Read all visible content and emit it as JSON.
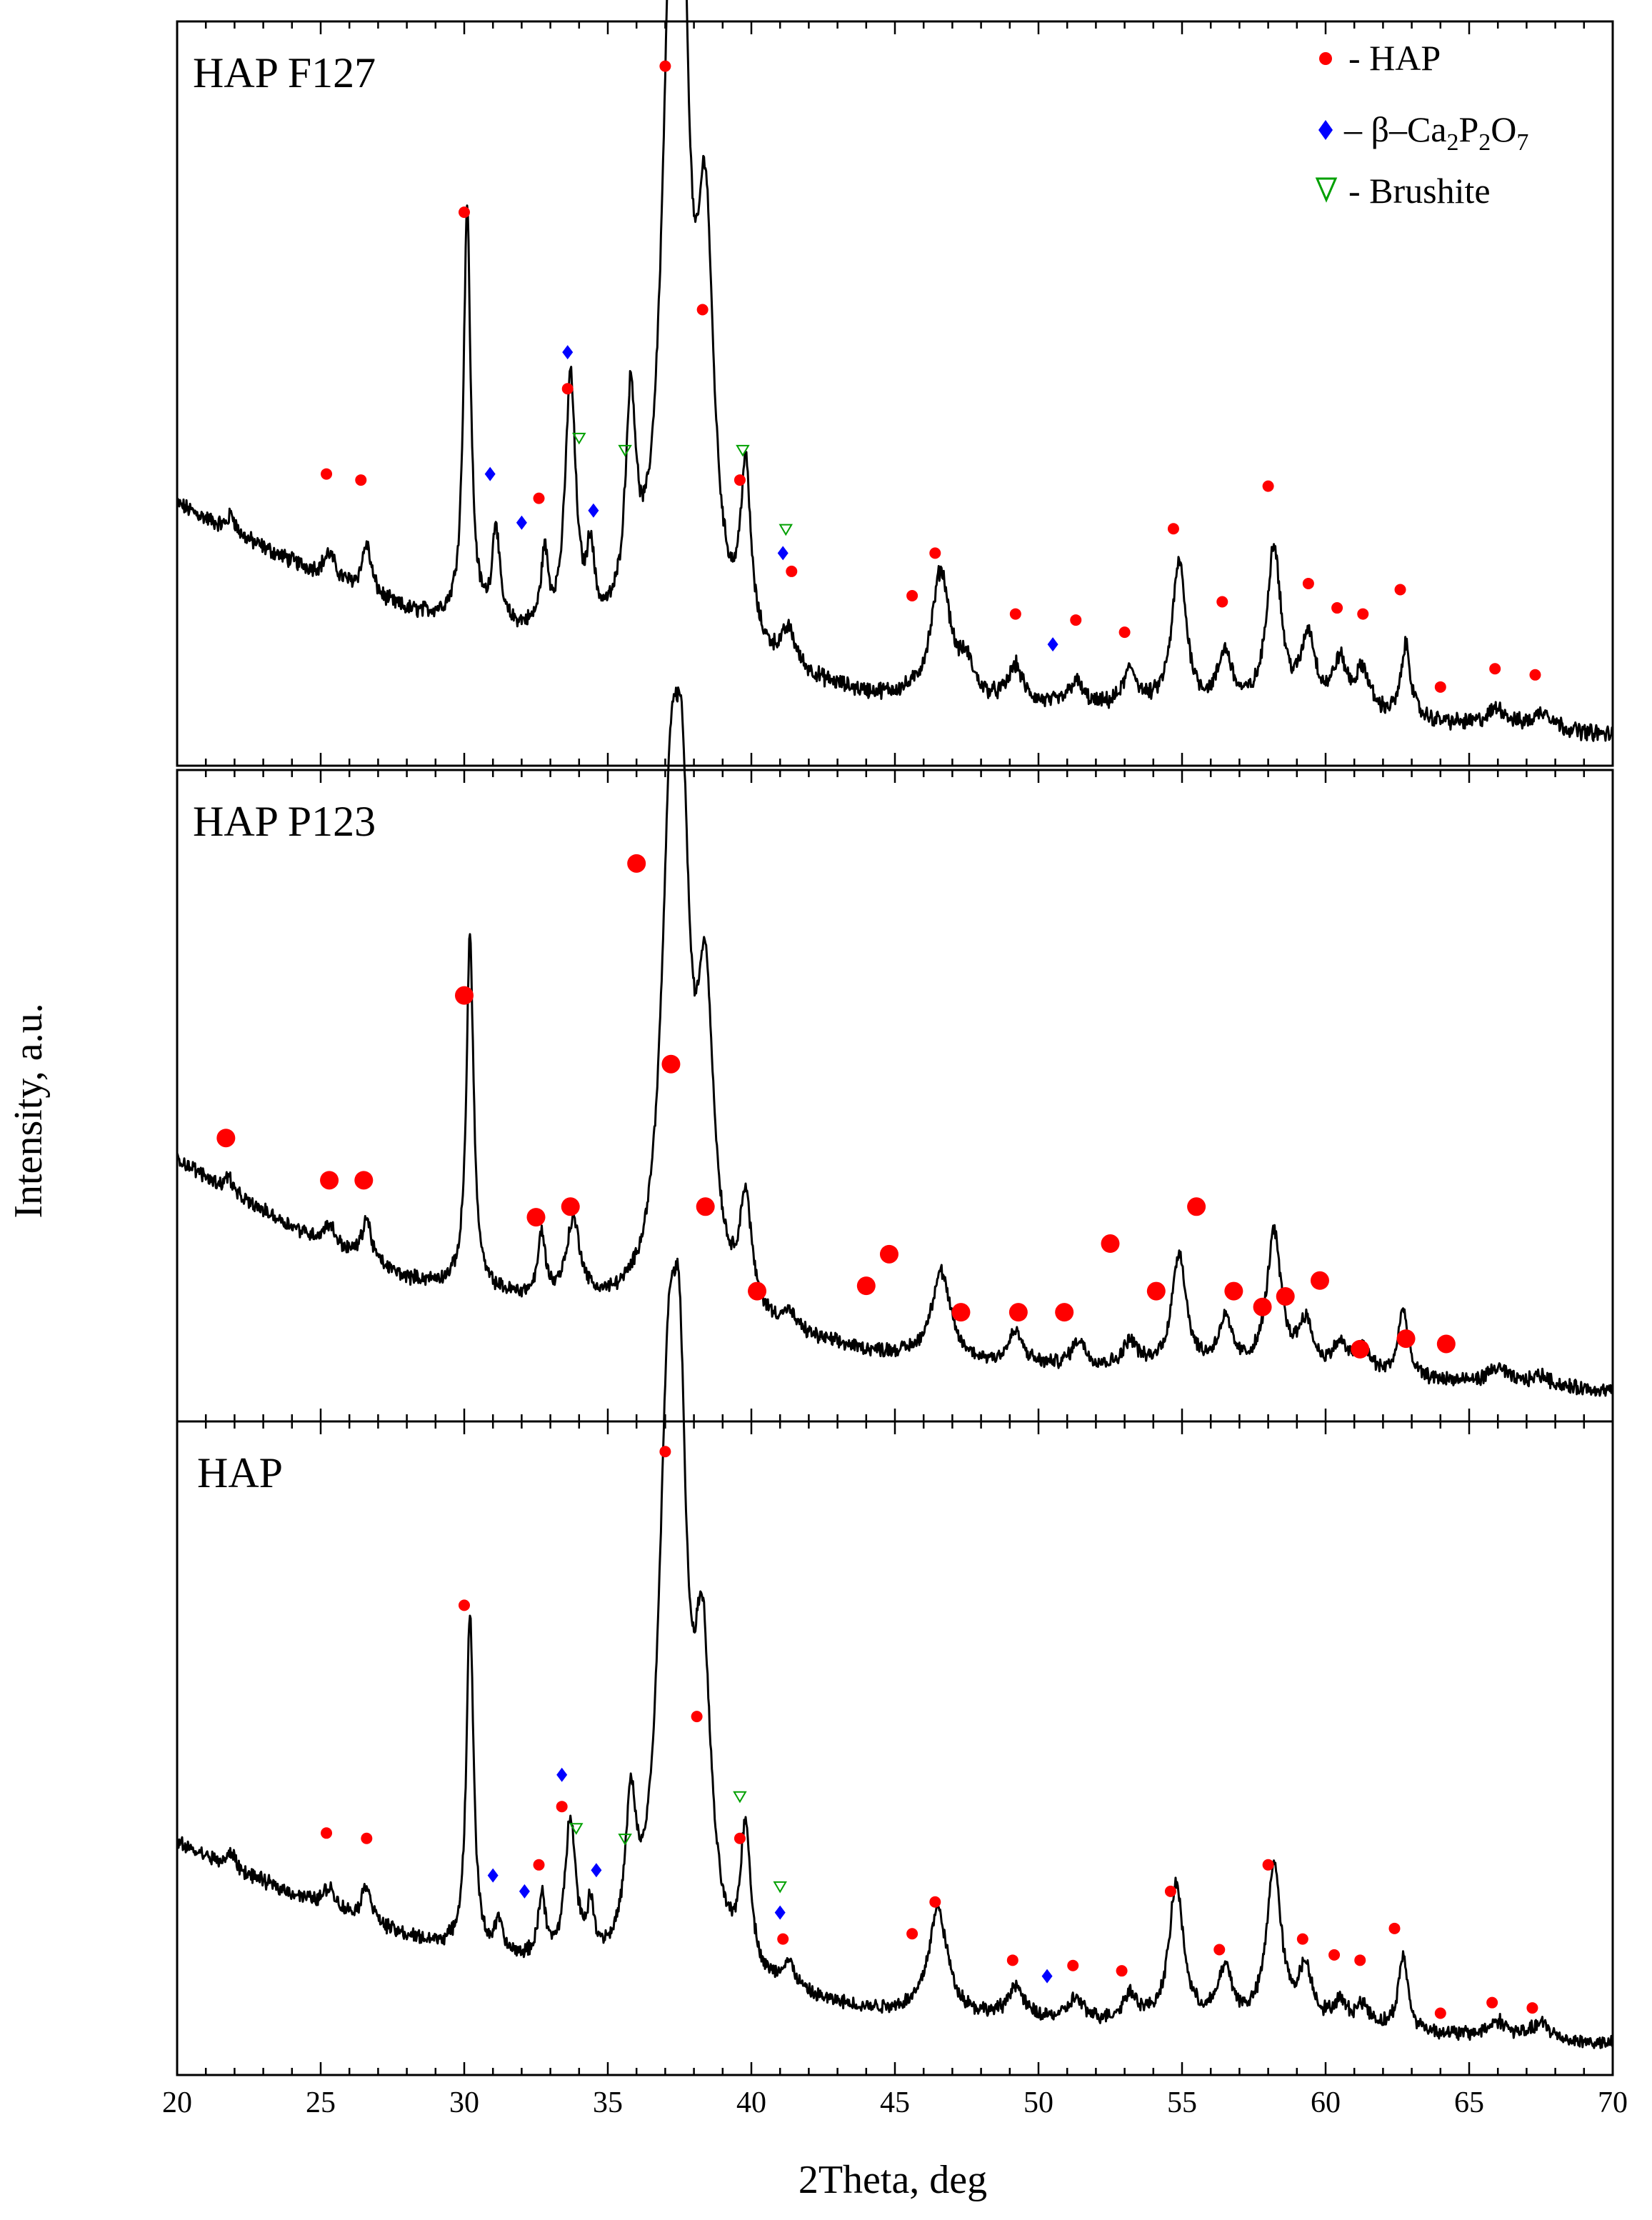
{
  "chart_data": {
    "type": "line",
    "title": "",
    "xlabel": "2Theta, deg",
    "ylabel": "Intensity, a.u.",
    "xlim": [
      20,
      70
    ],
    "x_ticks": [
      20,
      25,
      30,
      35,
      40,
      45,
      50,
      55,
      60,
      65,
      70
    ],
    "grid": false,
    "legend_position": "top-right",
    "legend": [
      {
        "marker": "circle",
        "color": "#ff0000",
        "label": "- HAP"
      },
      {
        "marker": "diamond",
        "color": "#0000ff",
        "label_prefix": "– β–Ca",
        "sub1": "2",
        "mid1": "P",
        "sub2": "2",
        "mid2": "O",
        "sub3": "7"
      },
      {
        "marker": "triangle-down",
        "color": "#00a000",
        "label": "- Brushite"
      }
    ],
    "colors": {
      "line": "#000000",
      "hap": "#ff0000",
      "pyro": "#0000ff",
      "brushite": "#00a000"
    },
    "series": [
      {
        "name": "HAP F127",
        "baseline": [
          [
            20,
            0.38
          ],
          [
            22,
            0.33
          ],
          [
            25,
            0.26
          ],
          [
            28,
            0.2
          ],
          [
            30,
            0.18
          ],
          [
            33,
            0.15
          ],
          [
            36,
            0.13
          ],
          [
            40,
            0.1
          ],
          [
            44,
            0.06
          ],
          [
            47,
            0.05
          ],
          [
            52,
            0.04
          ],
          [
            60,
            0.03
          ],
          [
            70,
            0.0
          ]
        ],
        "peaks": [
          [
            21.9,
            0.03,
            0.15
          ],
          [
            25.3,
            0.04,
            0.25
          ],
          [
            26.6,
            0.08,
            0.2
          ],
          [
            30.1,
            0.68,
            0.15
          ],
          [
            31.1,
            0.16,
            0.15
          ],
          [
            32.8,
            0.12,
            0.15
          ],
          [
            33.7,
            0.42,
            0.22
          ],
          [
            34.4,
            0.12,
            0.15
          ],
          [
            35.8,
            0.35,
            0.22
          ],
          [
            37.2,
            0.95,
            0.4
          ],
          [
            37.6,
            0.75,
            0.3
          ],
          [
            38.4,
            0.63,
            0.35
          ],
          [
            39.8,
            0.28,
            0.22
          ],
          [
            41.3,
            0.06,
            0.3
          ],
          [
            46.6,
            0.21,
            0.4
          ],
          [
            47.5,
            0.05,
            0.3
          ],
          [
            49.2,
            0.06,
            0.3
          ],
          [
            51.3,
            0.04,
            0.3
          ],
          [
            53.2,
            0.06,
            0.3
          ],
          [
            54.9,
            0.24,
            0.3
          ],
          [
            56.5,
            0.09,
            0.3
          ],
          [
            58.2,
            0.27,
            0.3
          ],
          [
            59.4,
            0.12,
            0.3
          ],
          [
            60.5,
            0.08,
            0.3
          ],
          [
            61.3,
            0.07,
            0.3
          ],
          [
            62.8,
            0.12,
            0.2
          ],
          [
            66.0,
            0.03,
            0.4
          ],
          [
            67.6,
            0.03,
            0.4
          ]
        ],
        "hap_markers": [
          [
            25.2,
            0.43
          ],
          [
            26.4,
            0.42
          ],
          [
            30.0,
            0.86
          ],
          [
            33.6,
            0.57
          ],
          [
            32.6,
            0.39
          ],
          [
            37.0,
            1.1
          ],
          [
            38.3,
            0.7
          ],
          [
            39.6,
            0.42
          ],
          [
            41.4,
            0.27
          ],
          [
            45.6,
            0.23
          ],
          [
            46.4,
            0.3
          ],
          [
            49.2,
            0.2
          ],
          [
            51.3,
            0.19
          ],
          [
            53.0,
            0.17
          ],
          [
            54.7,
            0.34
          ],
          [
            56.4,
            0.22
          ],
          [
            58.0,
            0.41
          ],
          [
            59.4,
            0.25
          ],
          [
            60.4,
            0.21
          ],
          [
            61.3,
            0.2
          ],
          [
            62.6,
            0.24
          ],
          [
            64.0,
            0.08
          ],
          [
            65.9,
            0.11
          ],
          [
            67.3,
            0.1
          ]
        ],
        "pyro_markers": [
          [
            30.9,
            0.43
          ],
          [
            32.0,
            0.35
          ],
          [
            33.6,
            0.63
          ],
          [
            34.5,
            0.37
          ],
          [
            41.1,
            0.3
          ],
          [
            50.5,
            0.15
          ]
        ],
        "brushite_markers": [
          [
            34.0,
            0.49
          ],
          [
            35.6,
            0.47
          ],
          [
            39.7,
            0.47
          ],
          [
            41.2,
            0.34
          ]
        ]
      },
      {
        "name": "HAP P123",
        "baseline": [
          [
            20,
            0.44
          ],
          [
            22,
            0.37
          ],
          [
            25,
            0.28
          ],
          [
            28,
            0.21
          ],
          [
            30,
            0.19
          ],
          [
            33,
            0.16
          ],
          [
            36,
            0.14
          ],
          [
            40,
            0.11
          ],
          [
            44,
            0.07
          ],
          [
            47,
            0.05
          ],
          [
            52,
            0.04
          ],
          [
            60,
            0.03
          ],
          [
            70,
            0.0
          ]
        ],
        "peaks": [
          [
            21.8,
            0.03,
            0.15
          ],
          [
            25.3,
            0.04,
            0.25
          ],
          [
            26.6,
            0.08,
            0.2
          ],
          [
            30.2,
            0.67,
            0.15
          ],
          [
            32.7,
            0.12,
            0.15
          ],
          [
            33.8,
            0.15,
            0.3
          ],
          [
            37.2,
            0.87,
            0.4
          ],
          [
            37.6,
            0.62,
            0.3
          ],
          [
            38.4,
            0.56,
            0.35
          ],
          [
            39.8,
            0.21,
            0.25
          ],
          [
            41.3,
            0.03,
            0.3
          ],
          [
            46.6,
            0.17,
            0.4
          ],
          [
            49.2,
            0.06,
            0.3
          ],
          [
            51.4,
            0.05,
            0.3
          ],
          [
            53.2,
            0.05,
            0.3
          ],
          [
            54.9,
            0.22,
            0.3
          ],
          [
            56.5,
            0.09,
            0.3
          ],
          [
            58.2,
            0.26,
            0.3
          ],
          [
            59.3,
            0.09,
            0.3
          ],
          [
            60.5,
            0.05,
            0.3
          ],
          [
            61.3,
            0.05,
            0.3
          ],
          [
            62.7,
            0.13,
            0.2
          ],
          [
            66.0,
            0.03,
            0.4
          ],
          [
            67.5,
            0.02,
            0.4
          ]
        ],
        "hap_markers": [
          [
            21.7,
            0.48
          ],
          [
            25.3,
            0.4
          ],
          [
            26.5,
            0.4
          ],
          [
            30.0,
            0.75
          ],
          [
            32.5,
            0.33
          ],
          [
            33.7,
            0.35
          ],
          [
            36.0,
            1.0
          ],
          [
            37.2,
            0.62
          ],
          [
            38.4,
            0.35
          ],
          [
            40.2,
            0.19
          ],
          [
            44.0,
            0.2
          ],
          [
            44.8,
            0.26
          ],
          [
            47.3,
            0.15
          ],
          [
            49.3,
            0.15
          ],
          [
            50.9,
            0.15
          ],
          [
            52.5,
            0.28
          ],
          [
            54.1,
            0.19
          ],
          [
            55.5,
            0.35
          ],
          [
            56.8,
            0.19
          ],
          [
            57.8,
            0.16
          ],
          [
            58.6,
            0.18
          ],
          [
            59.8,
            0.21
          ],
          [
            61.2,
            0.08
          ],
          [
            62.8,
            0.1
          ],
          [
            64.2,
            0.09
          ]
        ],
        "pyro_markers": [],
        "brushite_markers": []
      },
      {
        "name": "HAP",
        "baseline": [
          [
            20,
            0.38
          ],
          [
            22,
            0.33
          ],
          [
            25,
            0.26
          ],
          [
            28,
            0.2
          ],
          [
            30,
            0.17
          ],
          [
            33,
            0.14
          ],
          [
            36,
            0.12
          ],
          [
            40,
            0.09
          ],
          [
            44,
            0.06
          ],
          [
            47,
            0.05
          ],
          [
            52,
            0.04
          ],
          [
            60,
            0.03
          ],
          [
            70,
            0.0
          ]
        ],
        "peaks": [
          [
            21.9,
            0.03,
            0.15
          ],
          [
            25.3,
            0.04,
            0.25
          ],
          [
            26.6,
            0.07,
            0.2
          ],
          [
            30.2,
            0.64,
            0.15
          ],
          [
            31.2,
            0.06,
            0.15
          ],
          [
            32.7,
            0.12,
            0.15
          ],
          [
            33.7,
            0.27,
            0.22
          ],
          [
            34.4,
            0.09,
            0.15
          ],
          [
            35.8,
            0.26,
            0.22
          ],
          [
            37.1,
            0.95,
            0.4
          ],
          [
            37.5,
            0.75,
            0.3
          ],
          [
            38.3,
            0.55,
            0.35
          ],
          [
            39.8,
            0.27,
            0.22
          ],
          [
            41.3,
            0.05,
            0.3
          ],
          [
            46.5,
            0.2,
            0.4
          ],
          [
            49.2,
            0.06,
            0.3
          ],
          [
            51.3,
            0.04,
            0.3
          ],
          [
            53.2,
            0.05,
            0.3
          ],
          [
            54.8,
            0.26,
            0.3
          ],
          [
            56.5,
            0.1,
            0.3
          ],
          [
            58.2,
            0.3,
            0.3
          ],
          [
            59.3,
            0.1,
            0.3
          ],
          [
            60.5,
            0.04,
            0.3
          ],
          [
            61.3,
            0.04,
            0.3
          ],
          [
            62.7,
            0.14,
            0.2
          ],
          [
            66.0,
            0.03,
            0.4
          ],
          [
            67.5,
            0.03,
            0.4
          ]
        ],
        "hap_markers": [
          [
            25.2,
            0.4
          ],
          [
            26.6,
            0.39
          ],
          [
            30.0,
            0.83
          ],
          [
            33.4,
            0.45
          ],
          [
            32.6,
            0.34
          ],
          [
            37.0,
            1.12
          ],
          [
            38.1,
            0.62
          ],
          [
            39.6,
            0.39
          ],
          [
            41.1,
            0.2
          ],
          [
            45.6,
            0.21
          ],
          [
            46.4,
            0.27
          ],
          [
            49.1,
            0.16
          ],
          [
            51.2,
            0.15
          ],
          [
            52.9,
            0.14
          ],
          [
            54.6,
            0.29
          ],
          [
            56.3,
            0.18
          ],
          [
            58.0,
            0.34
          ],
          [
            59.2,
            0.2
          ],
          [
            60.3,
            0.17
          ],
          [
            61.2,
            0.16
          ],
          [
            62.4,
            0.22
          ],
          [
            64.0,
            0.06
          ],
          [
            65.8,
            0.08
          ],
          [
            67.2,
            0.07
          ]
        ],
        "pyro_markers": [
          [
            31.0,
            0.32
          ],
          [
            32.1,
            0.29
          ],
          [
            33.4,
            0.51
          ],
          [
            34.6,
            0.33
          ],
          [
            41.0,
            0.25
          ],
          [
            50.3,
            0.13
          ]
        ],
        "brushite_markers": [
          [
            33.9,
            0.41
          ],
          [
            35.6,
            0.39
          ],
          [
            39.6,
            0.47
          ],
          [
            41.0,
            0.3
          ]
        ]
      }
    ]
  }
}
